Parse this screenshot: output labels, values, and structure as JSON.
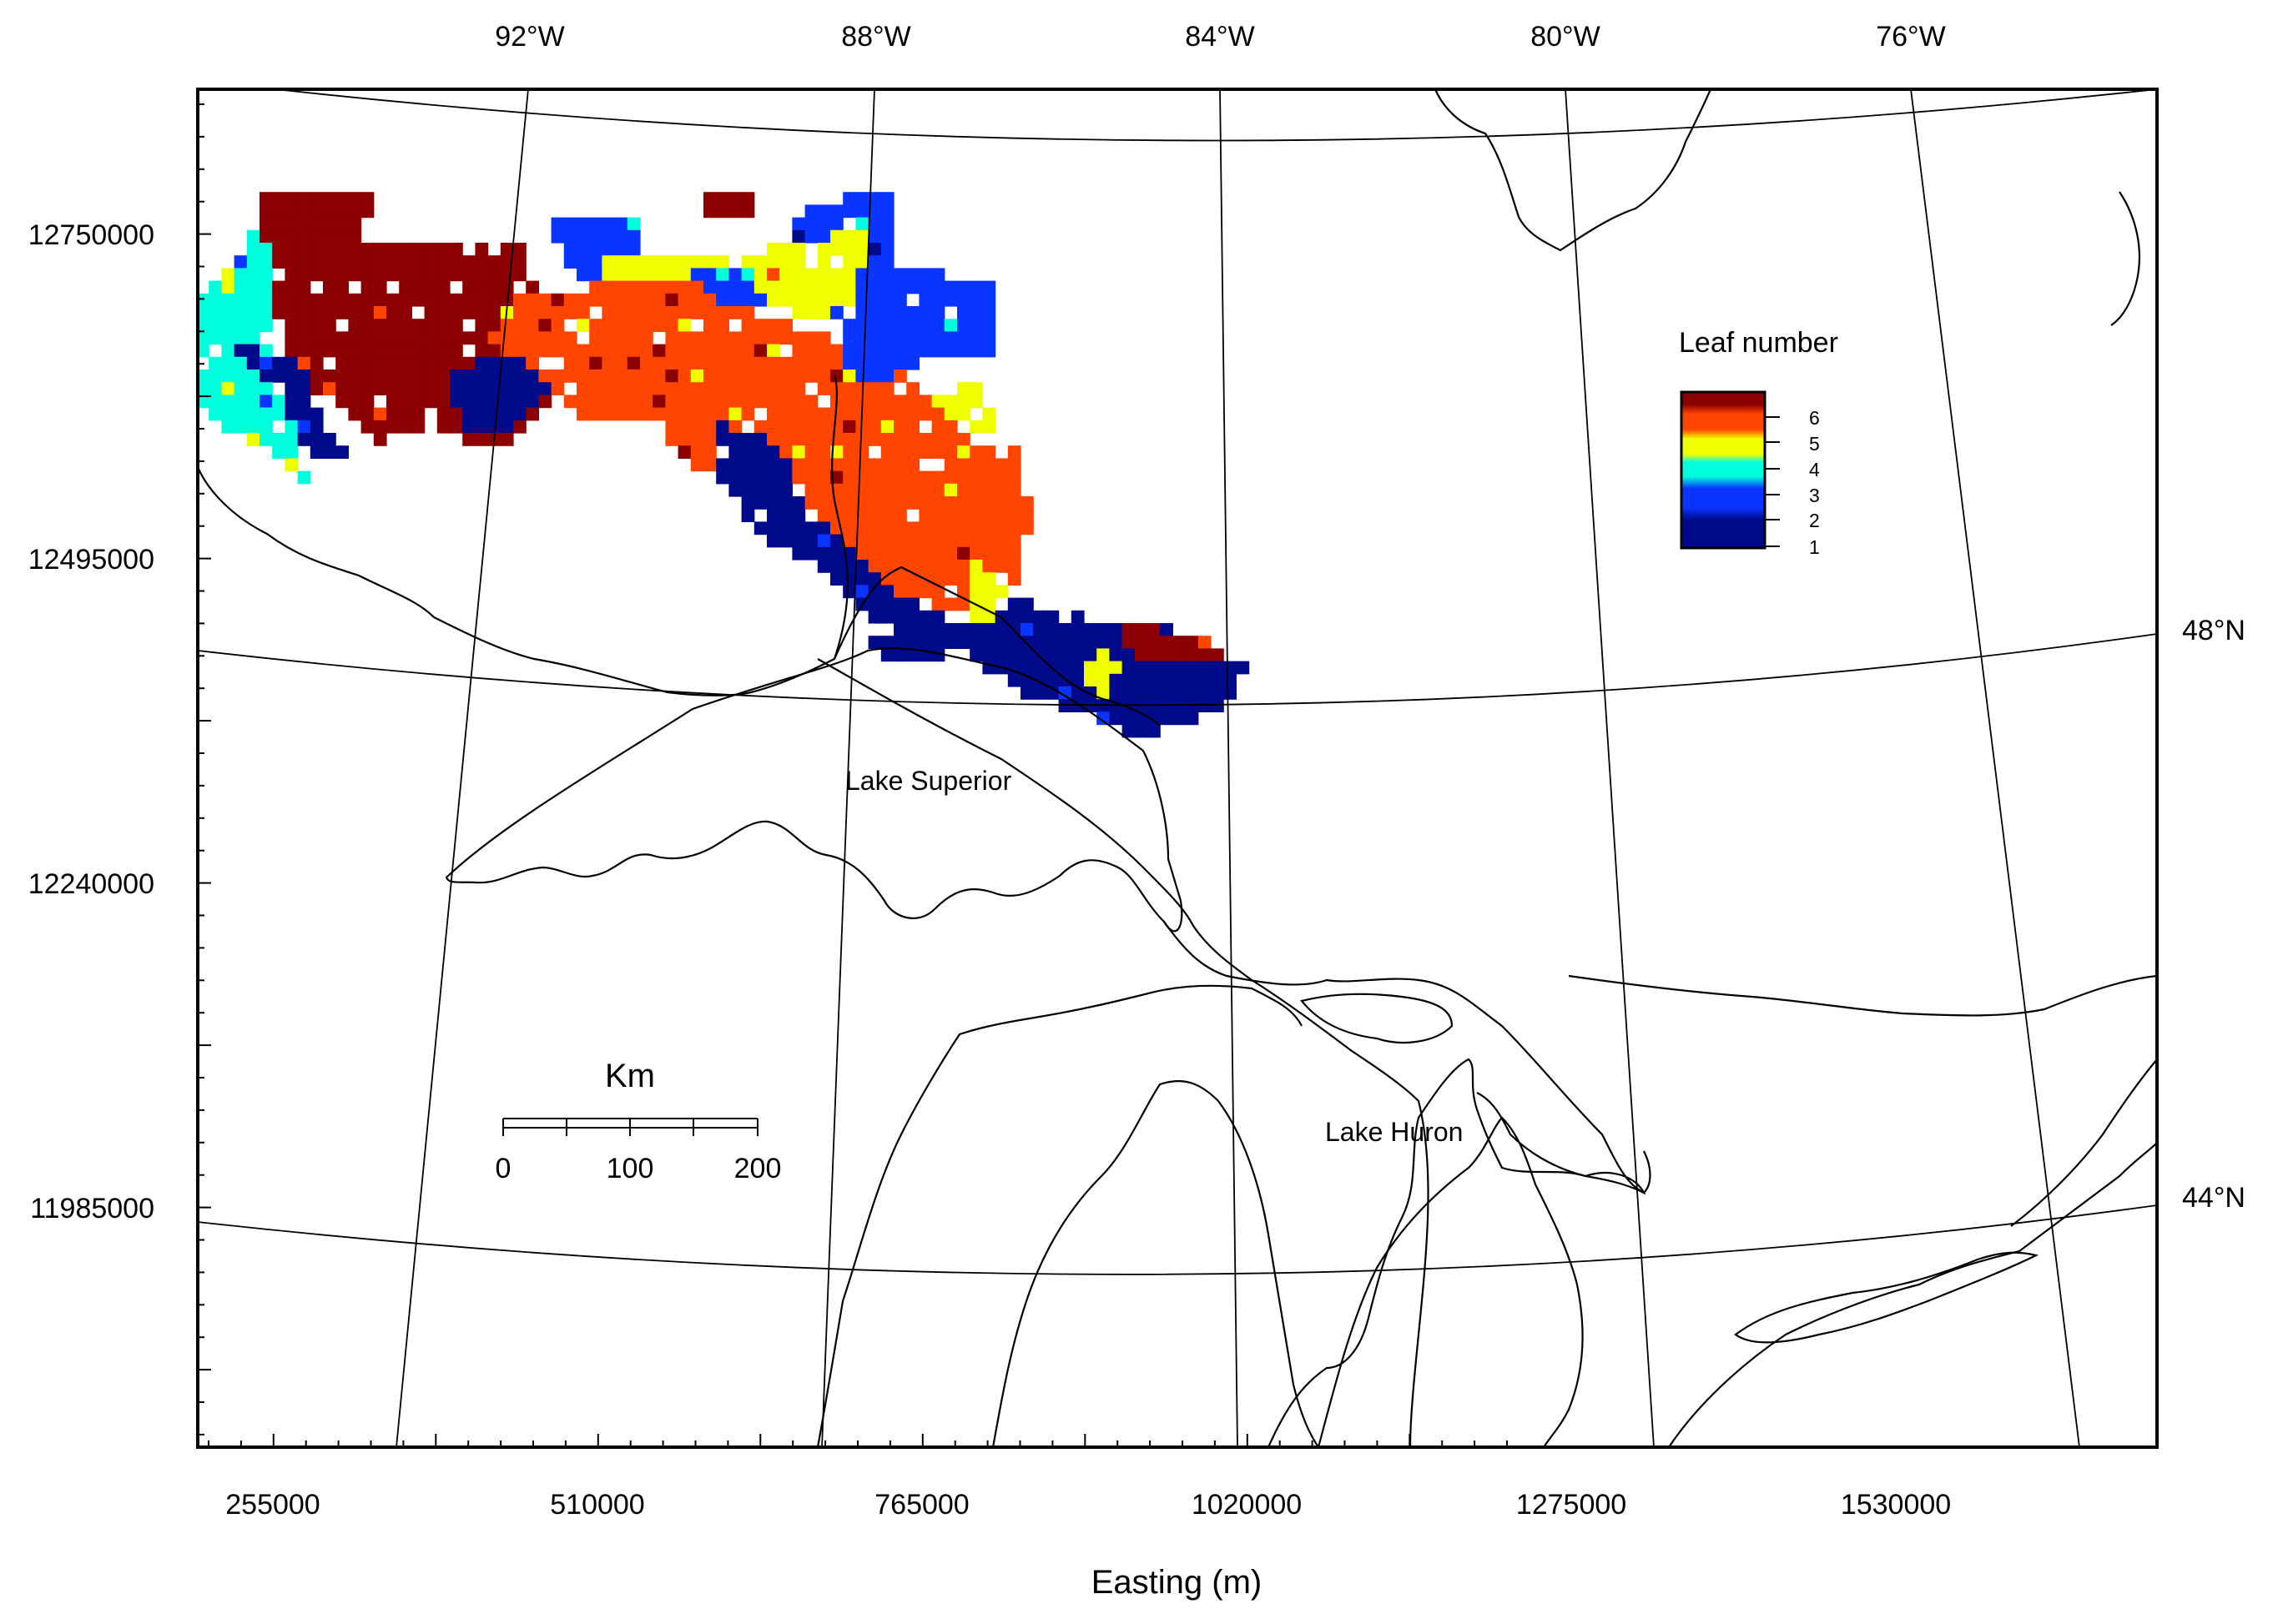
{
  "map": {
    "x_axis_title": "Easting (m)",
    "x_ticks": [
      "255000",
      "510000",
      "765000",
      "1020000",
      "1275000",
      "1530000"
    ],
    "y_ticks": [
      "12750000",
      "12495000",
      "12240000",
      "11985000"
    ],
    "longitude_labels": [
      "92°W",
      "88°W",
      "84°W",
      "80°W",
      "76°W"
    ],
    "latitude_labels": [
      "48°N",
      "44°N"
    ],
    "lake_labels": [
      "Lake Superior",
      "Lake Huron"
    ]
  },
  "legend": {
    "title": "Leaf number",
    "levels": [
      "6",
      "5",
      "4",
      "3",
      "2",
      "1"
    ],
    "colors": {
      "6": "#8b0000",
      "5": "#ff4500",
      "4": "#f0ff00",
      "3": "#00ffdd",
      "2": "#0a34ff",
      "1": "#000a8b"
    }
  },
  "scale_bar": {
    "title": "Km",
    "labels": [
      "0",
      "100",
      "200"
    ]
  }
}
